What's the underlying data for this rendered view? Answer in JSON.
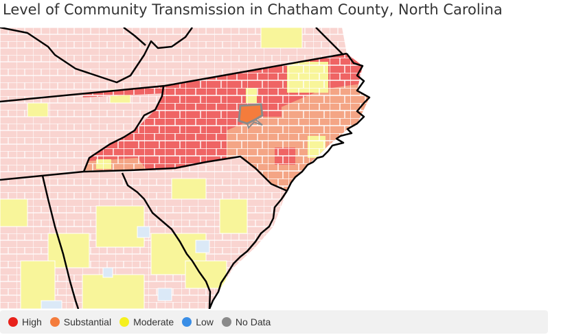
{
  "title": "Level of Community Transmission in Chatham County, North Carolina",
  "legend": {
    "items": [
      {
        "label": "High",
        "color": "#e8221b"
      },
      {
        "label": "Substantial",
        "color": "#f47c3c"
      },
      {
        "label": "Moderate",
        "color": "#f5f01e"
      },
      {
        "label": "Low",
        "color": "#3a8ee6"
      },
      {
        "label": "No Data",
        "color": "#8a8a8a"
      }
    ]
  },
  "map": {
    "colors": {
      "high_fill": "#ef6464",
      "substantial_fill": "#f4a585",
      "moderate_fill": "#f8f59a",
      "low_fill": "#dbe9f7",
      "faded_fill": "#f9d4d0",
      "highlight_county": "#f47c3c",
      "highlight_border": "#8a8a8a",
      "state_border": "#000000",
      "county_border": "#ffffff"
    }
  }
}
